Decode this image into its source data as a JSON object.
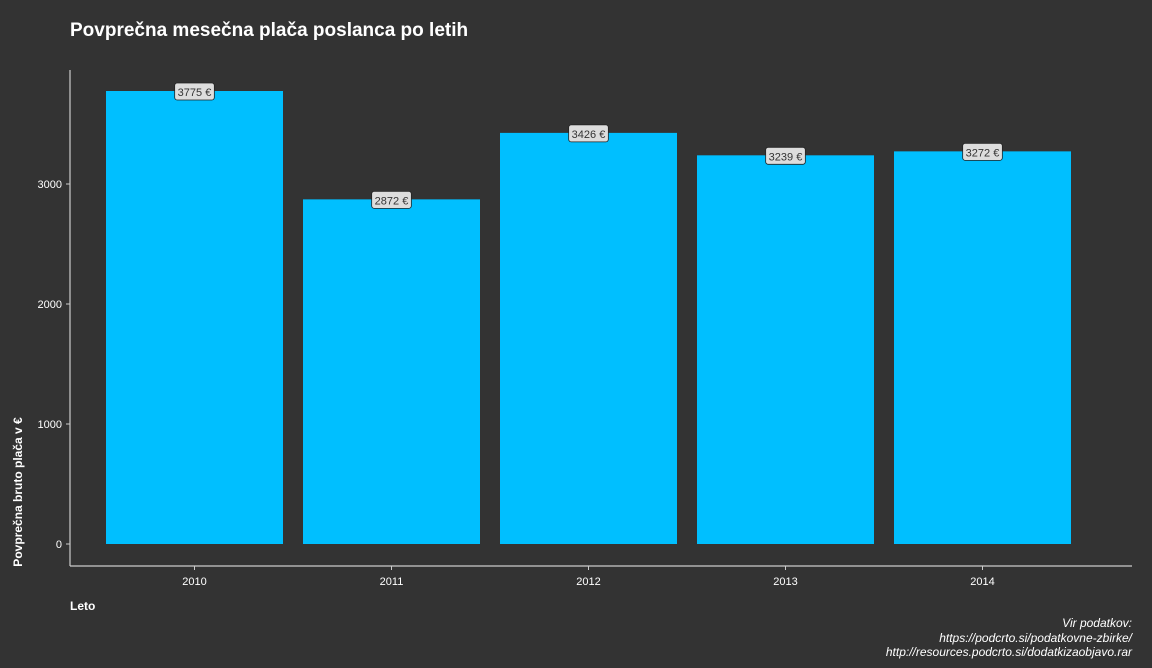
{
  "chart_data": {
    "type": "bar",
    "title": "Povprečna mesečna plača poslanca po letih",
    "xlabel": "Leto",
    "ylabel": "Povprečna bruto plača v €",
    "categories": [
      "2010",
      "2011",
      "2012",
      "2013",
      "2014"
    ],
    "values": [
      3775,
      2872,
      3426,
      3239,
      3272
    ],
    "data_labels": [
      "3775 €",
      "2872 €",
      "3426 €",
      "3239 €",
      "3272 €"
    ],
    "yticks": [
      0,
      1000,
      2000,
      3000
    ],
    "ytick_labels": [
      "0",
      "1000",
      "2000",
      "3000"
    ],
    "ylim": [
      0,
      3775
    ],
    "grid": false,
    "bar_color": "#00BFFF",
    "background_color": "#333333",
    "label_fill": "#DDDDDD",
    "caption": [
      "Vir podatkov:",
      "https://podcrto.si/podatkovne-zbirke/",
      "http://resources.podcrto.si/dodatkizaobjavo.rar"
    ]
  }
}
